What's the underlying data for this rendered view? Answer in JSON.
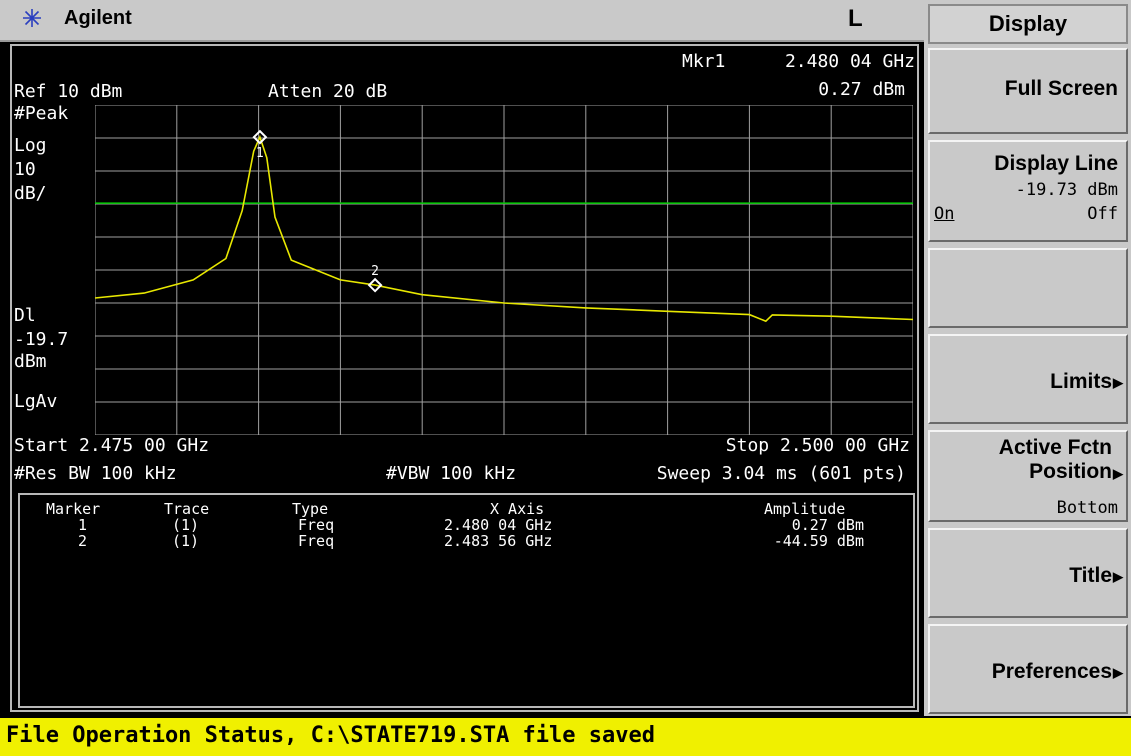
{
  "header": {
    "brand": "Agilent",
    "indicator": "L",
    "logo_icon": "agilent-spark-icon"
  },
  "readouts": {
    "marker_label": "Mkr1",
    "marker_freq": "2.480 04 GHz",
    "marker_ampl": "0.27 dBm",
    "ref": "Ref 10 dBm",
    "atten": "Atten 20 dB",
    "detector": "#Peak",
    "scale_type": "Log",
    "scale_value": "10",
    "scale_unit": "dB/",
    "display_line_label": "Dl",
    "display_line_value": "-19.7",
    "display_line_unit": "dBm",
    "avg_type": "LgAv",
    "start": "Start 2.475 00 GHz",
    "stop": "Stop 2.500 00 GHz",
    "res_bw": "#Res BW 100 kHz",
    "vbw": "#VBW 100 kHz",
    "sweep": "Sweep 3.04 ms (601 pts)"
  },
  "trace": {
    "color": "#e8e800",
    "display_line_color": "#00c800",
    "display_line_dbm": -19.73,
    "ref_level_dbm": 10,
    "db_per_div": 10,
    "start_ghz": 2.475,
    "stop_ghz": 2.5,
    "points": [
      [
        2.475,
        -48.5
      ],
      [
        2.4765,
        -47
      ],
      [
        2.478,
        -43
      ],
      [
        2.479,
        -36.5
      ],
      [
        2.4795,
        -22
      ],
      [
        2.47985,
        -4
      ],
      [
        2.48004,
        0.27
      ],
      [
        2.48025,
        -6
      ],
      [
        2.4805,
        -24
      ],
      [
        2.481,
        -37
      ],
      [
        2.4825,
        -43
      ],
      [
        2.48356,
        -44.59
      ],
      [
        2.485,
        -47.5
      ],
      [
        2.4875,
        -50
      ],
      [
        2.49,
        -51.5
      ],
      [
        2.4925,
        -52.5
      ],
      [
        2.495,
        -53.5
      ],
      [
        2.4955,
        -55.5
      ],
      [
        2.4957,
        -53.6
      ],
      [
        2.4975,
        -54
      ],
      [
        2.5,
        -55
      ]
    ],
    "markers": [
      {
        "id": "1",
        "freq_ghz": 2.48004,
        "ampl_dbm": 0.27
      },
      {
        "id": "2",
        "freq_ghz": 2.48356,
        "ampl_dbm": -44.59
      }
    ]
  },
  "marker_table": {
    "headers": [
      "Marker",
      "Trace",
      "Type",
      "X Axis",
      "Amplitude"
    ],
    "rows": [
      [
        "1",
        "(1)",
        "Freq",
        "2.480 04 GHz",
        "0.27 dBm"
      ],
      [
        "2",
        "(1)",
        "Freq",
        "2.483 56 GHz",
        "-44.59 dBm"
      ]
    ]
  },
  "menu": {
    "title": "Display",
    "keys": [
      {
        "label": "Full Screen"
      },
      {
        "label": "Display Line",
        "value": "-19.73 dBm",
        "on": "On",
        "off": "Off"
      },
      {
        "label": ""
      },
      {
        "label": "Limits"
      },
      {
        "label": "Active Fctn\nPosition",
        "sub": "Bottom"
      },
      {
        "label": "Title"
      },
      {
        "label": "Preferences"
      }
    ]
  },
  "status": {
    "text": "File Operation Status, C:\\STATE719.STA file saved"
  }
}
